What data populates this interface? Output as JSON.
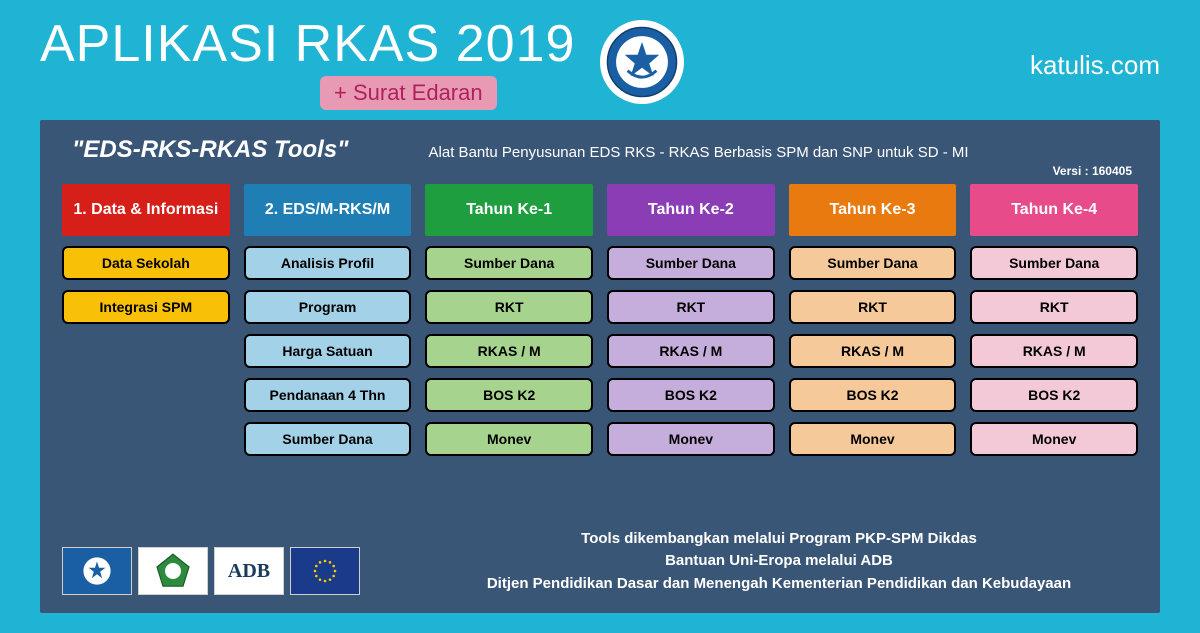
{
  "banner": {
    "background_color": "#1fb3d4",
    "title": "APLIKASI RKAS 2019",
    "badge_text": "+ Surat Edaran",
    "badge_bg": "#e89ab5",
    "badge_color": "#b0215c",
    "site_name": "katulis.com",
    "logo_name": "tut-wuri-handayani-icon"
  },
  "panel": {
    "background_color": "#3a5677",
    "title": "\"EDS-RKS-RKAS Tools\"",
    "description": "Alat Bantu Penyusunan EDS RKS - RKAS Berbasis SPM dan SNP untuk SD - MI",
    "version_label": "Versi : 160405"
  },
  "columns": [
    {
      "header": "1. Data & Informasi",
      "header_bg": "#d61f19",
      "item_bg": "#f8c107",
      "items": [
        "Data Sekolah",
        "Integrasi  SPM"
      ]
    },
    {
      "header": "2. EDS/M-RKS/M",
      "header_bg": "#1f7fb5",
      "item_bg": "#a3d1e8",
      "items": [
        "Analisis Profil",
        "Program",
        "Harga Satuan",
        "Pendanaan 4 Thn",
        "Sumber Dana"
      ]
    },
    {
      "header": "Tahun Ke-1",
      "header_bg": "#1f9e3f",
      "item_bg": "#a6d48f",
      "items": [
        "Sumber Dana",
        "RKT",
        "RKAS / M",
        "BOS K2",
        "Monev"
      ]
    },
    {
      "header": "Tahun Ke-2",
      "header_bg": "#8a3db5",
      "item_bg": "#c5aedb",
      "items": [
        "Sumber Dana",
        "RKT",
        "RKAS / M",
        "BOS K2",
        "Monev"
      ]
    },
    {
      "header": "Tahun Ke-3",
      "header_bg": "#e87a0f",
      "item_bg": "#f6c99a",
      "items": [
        "Sumber Dana",
        "RKT",
        "RKAS / M",
        "BOS K2",
        "Monev"
      ]
    },
    {
      "header": "Tahun Ke-4",
      "header_bg": "#e84b8a",
      "item_bg": "#f4c9d7",
      "items": [
        "Sumber Dana",
        "RKT",
        "RKAS / M",
        "BOS K2",
        "Monev"
      ]
    }
  ],
  "footer": {
    "logos": [
      "tut-wuri",
      "kemenag",
      "ADB",
      "eu-flag"
    ],
    "lines": [
      "Tools dikembangkan melalui Program PKP-SPM Dikdas",
      "Bantuan Uni-Eropa melalui ADB",
      "Ditjen Pendidikan Dasar dan Menengah  Kementerian Pendidikan dan Kebudayaan"
    ]
  }
}
